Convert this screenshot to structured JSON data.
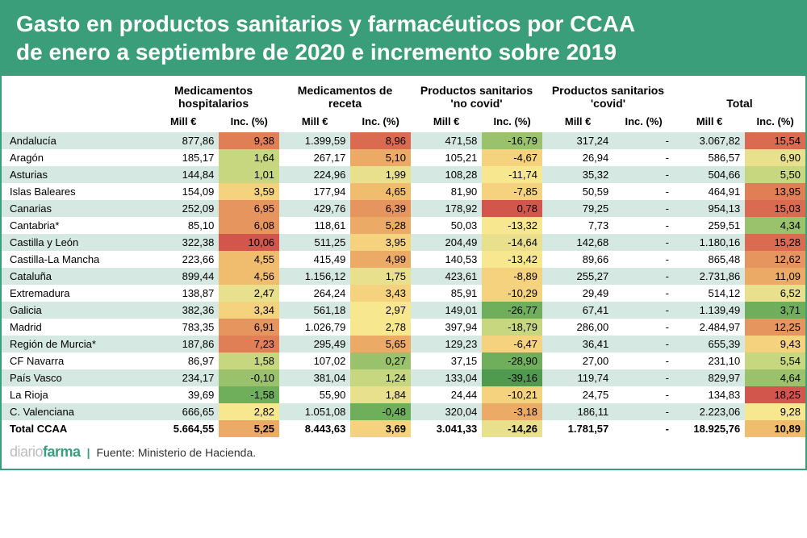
{
  "title_line1": "Gasto en productos sanitarios y farmacéuticos por CCAA",
  "title_line2": "de enero a septiembre de 2020 e incremento sobre 2019",
  "group_headers": [
    "Medicamentos hospitalarios",
    "Medicamentos de receta",
    "Productos sanitarios 'no covid'",
    "Productos sanitarios 'covid'",
    "Total"
  ],
  "sub_headers": [
    "Mill €",
    "Inc. (%)",
    "Mill €",
    "Inc. (%)",
    "Mill €",
    "Inc. (%)",
    "Mill €",
    "Inc. (%)",
    "Mill €",
    "Inc. (%)"
  ],
  "footer_logo1": "diario",
  "footer_logo2": "farma",
  "footer_source": "Fuente: Ministerio de Hacienda.",
  "heat_colors": {
    "g5": "#4f9a4f",
    "g4": "#6fae5a",
    "g3": "#9ac16b",
    "g2": "#c6d77f",
    "g1": "#e8e08c",
    "y0": "#f7e78f",
    "o1": "#f4d27e",
    "o2": "#f0bd6f",
    "o3": "#ebab66",
    "o4": "#e6955e",
    "o5": "#e07e56",
    "o6": "#da6a50",
    "r1": "#d2564b"
  },
  "rows": [
    {
      "region": "Andalucía",
      "v": [
        "877,86",
        "9,38",
        "1.399,59",
        "8,96",
        "471,58",
        "-16,79",
        "317,24",
        "-",
        "3.067,82",
        "15,54"
      ],
      "c": [
        null,
        "o5",
        null,
        "o6",
        null,
        "g3",
        null,
        null,
        null,
        "o6"
      ]
    },
    {
      "region": "Aragón",
      "v": [
        "185,17",
        "1,64",
        "267,17",
        "5,10",
        "105,21",
        "-4,67",
        "26,94",
        "-",
        "586,57",
        "6,90"
      ],
      "c": [
        null,
        "g2",
        null,
        "o3",
        null,
        "o1",
        null,
        null,
        null,
        "g1"
      ]
    },
    {
      "region": "Asturias",
      "v": [
        "144,84",
        "1,01",
        "224,96",
        "1,99",
        "108,28",
        "-11,74",
        "35,32",
        "-",
        "504,66",
        "5,50"
      ],
      "c": [
        null,
        "g2",
        null,
        "g1",
        null,
        "y0",
        null,
        null,
        null,
        "g2"
      ]
    },
    {
      "region": "Islas Baleares",
      "v": [
        "154,09",
        "3,59",
        "177,94",
        "4,65",
        "81,90",
        "-7,85",
        "50,59",
        "-",
        "464,91",
        "13,95"
      ],
      "c": [
        null,
        "o1",
        null,
        "o2",
        null,
        "o1",
        null,
        null,
        null,
        "o5"
      ]
    },
    {
      "region": "Canarias",
      "v": [
        "252,09",
        "6,95",
        "429,76",
        "6,39",
        "178,92",
        "0,78",
        "79,25",
        "-",
        "954,13",
        "15,03"
      ],
      "c": [
        null,
        "o4",
        null,
        "o4",
        null,
        "r1",
        null,
        null,
        null,
        "o6"
      ]
    },
    {
      "region": "Cantabria*",
      "v": [
        "85,10",
        "6,08",
        "118,61",
        "5,28",
        "50,03",
        "-13,32",
        "7,73",
        "-",
        "259,51",
        "4,34"
      ],
      "c": [
        null,
        "o4",
        null,
        "o3",
        null,
        "y0",
        null,
        null,
        null,
        "g3"
      ]
    },
    {
      "region": "Castilla y León",
      "v": [
        "322,38",
        "10,06",
        "511,25",
        "3,95",
        "204,49",
        "-14,64",
        "142,68",
        "-",
        "1.180,16",
        "15,28"
      ],
      "c": [
        null,
        "r1",
        null,
        "o1",
        null,
        "g1",
        null,
        null,
        null,
        "o6"
      ]
    },
    {
      "region": "Castilla-La Mancha",
      "v": [
        "223,66",
        "4,55",
        "415,49",
        "4,99",
        "140,53",
        "-13,42",
        "89,66",
        "-",
        "865,48",
        "12,62"
      ],
      "c": [
        null,
        "o2",
        null,
        "o3",
        null,
        "y0",
        null,
        null,
        null,
        "o4"
      ]
    },
    {
      "region": "Cataluña",
      "v": [
        "899,44",
        "4,56",
        "1.156,12",
        "1,75",
        "423,61",
        "-8,89",
        "255,27",
        "-",
        "2.731,86",
        "11,09"
      ],
      "c": [
        null,
        "o2",
        null,
        "g1",
        null,
        "o1",
        null,
        null,
        null,
        "o3"
      ]
    },
    {
      "region": "Extremadura",
      "v": [
        "138,87",
        "2,47",
        "264,24",
        "3,43",
        "85,91",
        "-10,29",
        "29,49",
        "-",
        "514,12",
        "6,52"
      ],
      "c": [
        null,
        "g1",
        null,
        "o1",
        null,
        "o1",
        null,
        null,
        null,
        "g1"
      ]
    },
    {
      "region": "Galicia",
      "v": [
        "382,36",
        "3,34",
        "561,18",
        "2,97",
        "149,01",
        "-26,77",
        "67,41",
        "-",
        "1.139,49",
        "3,71"
      ],
      "c": [
        null,
        "o1",
        null,
        "y0",
        null,
        "g4",
        null,
        null,
        null,
        "g4"
      ]
    },
    {
      "region": "Madrid",
      "v": [
        "783,35",
        "6,91",
        "1.026,79",
        "2,78",
        "397,94",
        "-18,79",
        "286,00",
        "-",
        "2.484,97",
        "12,25"
      ],
      "c": [
        null,
        "o4",
        null,
        "y0",
        null,
        "g2",
        null,
        null,
        null,
        "o4"
      ]
    },
    {
      "region": "Región de Murcia*",
      "v": [
        "187,86",
        "7,23",
        "295,49",
        "5,65",
        "129,23",
        "-6,47",
        "36,41",
        "-",
        "655,39",
        "9,43"
      ],
      "c": [
        null,
        "o5",
        null,
        "o3",
        null,
        "o1",
        null,
        null,
        null,
        "o1"
      ]
    },
    {
      "region": "CF Navarra",
      "v": [
        "86,97",
        "1,58",
        "107,02",
        "0,27",
        "37,15",
        "-28,90",
        "27,00",
        "-",
        "231,10",
        "5,54"
      ],
      "c": [
        null,
        "g2",
        null,
        "g3",
        null,
        "g4",
        null,
        null,
        null,
        "g2"
      ]
    },
    {
      "region": "País Vasco",
      "v": [
        "234,17",
        "-0,10",
        "381,04",
        "1,24",
        "133,04",
        "-39,16",
        "119,74",
        "-",
        "829,97",
        "4,64"
      ],
      "c": [
        null,
        "g3",
        null,
        "g2",
        null,
        "g5",
        null,
        null,
        null,
        "g3"
      ]
    },
    {
      "region": "La Rioja",
      "v": [
        "39,69",
        "-1,58",
        "55,90",
        "1,84",
        "24,44",
        "-10,21",
        "24,75",
        "-",
        "134,83",
        "18,25"
      ],
      "c": [
        null,
        "g4",
        null,
        "g1",
        null,
        "o1",
        null,
        null,
        null,
        "r1"
      ]
    },
    {
      "region": "C. Valenciana",
      "v": [
        "666,65",
        "2,82",
        "1.051,08",
        "-0,48",
        "320,04",
        "-3,18",
        "186,11",
        "-",
        "2.223,06",
        "9,28"
      ],
      "c": [
        null,
        "y0",
        null,
        "g4",
        null,
        "o3",
        null,
        null,
        null,
        "y0"
      ]
    },
    {
      "region": "Total CCAA",
      "total": true,
      "v": [
        "5.664,55",
        "5,25",
        "8.443,63",
        "3,69",
        "3.041,33",
        "-14,26",
        "1.781,57",
        "-",
        "18.925,76",
        "10,89"
      ],
      "c": [
        null,
        "o3",
        null,
        "o1",
        null,
        "g1",
        null,
        null,
        null,
        "o2"
      ]
    }
  ]
}
